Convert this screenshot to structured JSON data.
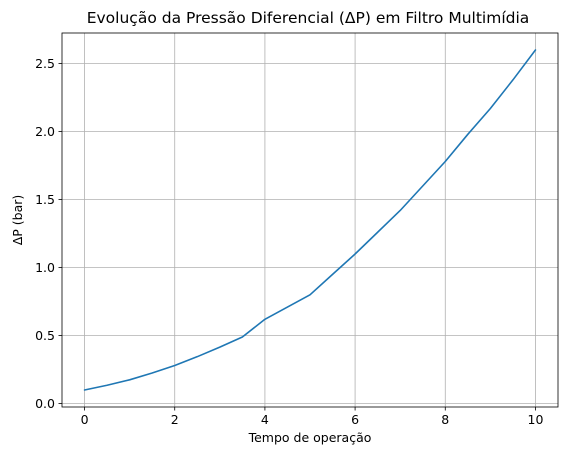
{
  "chart_data": {
    "type": "line",
    "title": "Evolução da Pressão Diferencial (ΔP) em Filtro Multimídia",
    "xlabel": "Tempo de operação",
    "ylabel": "ΔP (bar)",
    "xlim": [
      -0.5,
      10.5
    ],
    "ylim": [
      -0.025,
      2.725
    ],
    "xticks": [
      0,
      2,
      4,
      6,
      8,
      10
    ],
    "xtick_labels": [
      "0",
      "2",
      "4",
      "6",
      "8",
      "10"
    ],
    "yticks": [
      0.0,
      0.5,
      1.0,
      1.5,
      2.0,
      2.5
    ],
    "ytick_labels": [
      "0.0",
      "0.5",
      "1.0",
      "1.5",
      "2.0",
      "2.5"
    ],
    "grid": true,
    "line_color": "#1f77b4",
    "series": [
      {
        "x": [
          0,
          0.5,
          1,
          1.5,
          2,
          2.5,
          3,
          3.5,
          4,
          4.5,
          5,
          5.5,
          6,
          6.5,
          7,
          7.5,
          8,
          8.5,
          9,
          9.5,
          10
        ],
        "values": [
          0.1,
          0.135,
          0.175,
          0.225,
          0.28,
          0.345,
          0.415,
          0.49,
          0.62,
          0.71,
          0.8,
          0.95,
          1.1,
          1.26,
          1.42,
          1.6,
          1.78,
          1.98,
          2.17,
          2.38,
          2.6
        ]
      }
    ]
  }
}
